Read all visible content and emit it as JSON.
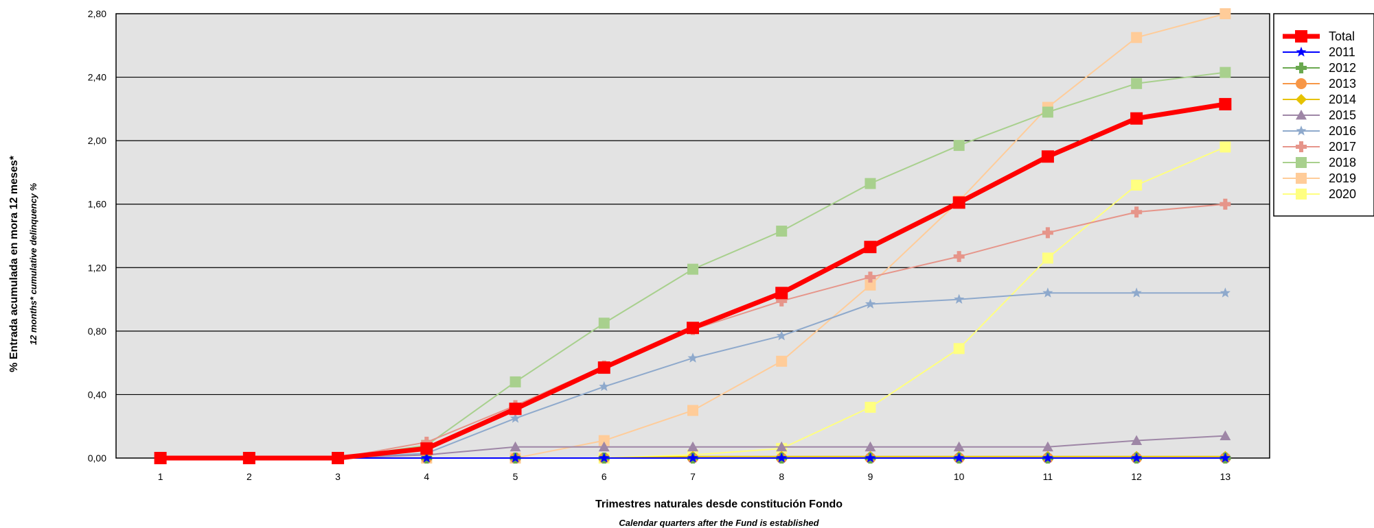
{
  "chart_data": {
    "type": "line",
    "x": [
      1,
      2,
      3,
      4,
      5,
      6,
      7,
      8,
      9,
      10,
      11,
      12,
      13
    ],
    "ylim": [
      0,
      2.8
    ],
    "yticks": [
      0,
      0.4,
      0.8,
      1.2,
      1.6,
      2.0,
      2.4,
      2.8
    ],
    "ytick_labels": [
      "0,00",
      "0,40",
      "0,80",
      "1,20",
      "1,60",
      "2,00",
      "2,40",
      "2,80"
    ],
    "xlabel": "Trimestres naturales desde constitución Fondo",
    "xlabel_sub": "Calendar quarters after the Fund is established",
    "ylabel": "% Entrada acumulada en mora 12 meses*",
    "ylabel_sub": "12 months* cumulative delinquency %",
    "grid": "horizontal",
    "legend_position": "right",
    "series": [
      {
        "name": "2020",
        "color": "#ffff80",
        "marker": "square",
        "width": 2,
        "values": [
          0,
          0,
          0,
          0,
          0,
          0,
          0.02,
          0.06,
          0.32,
          0.69,
          1.26,
          1.72,
          1.96
        ]
      },
      {
        "name": "2019",
        "color": "#ffcc99",
        "marker": "square",
        "width": 2,
        "values": [
          0,
          0,
          0,
          0,
          0,
          0.11,
          0.3,
          0.61,
          1.09,
          1.62,
          2.21,
          2.65,
          2.8
        ]
      },
      {
        "name": "2018",
        "color": "#a8d08d",
        "marker": "square",
        "width": 2,
        "values": [
          0,
          0,
          0,
          0.08,
          0.48,
          0.85,
          1.19,
          1.43,
          1.73,
          1.97,
          2.18,
          2.36,
          2.43
        ]
      },
      {
        "name": "2017",
        "color": "#e6958a",
        "marker": "plus",
        "width": 2,
        "values": [
          0,
          0,
          0,
          0.1,
          0.33,
          0.58,
          0.81,
          0.99,
          1.14,
          1.27,
          1.42,
          1.55,
          1.6
        ]
      },
      {
        "name": "2016",
        "color": "#8ea9cc",
        "marker": "star",
        "width": 2,
        "values": [
          0,
          0,
          0,
          0.03,
          0.25,
          0.45,
          0.63,
          0.77,
          0.97,
          1.0,
          1.04,
          1.04,
          1.04
        ]
      },
      {
        "name": "2015",
        "color": "#9e86a6",
        "marker": "triangle",
        "width": 2,
        "values": [
          0,
          0,
          0,
          0.02,
          0.07,
          0.07,
          0.07,
          0.07,
          0.07,
          0.07,
          0.07,
          0.11,
          0.14
        ]
      },
      {
        "name": "2014",
        "color": "#e6c200",
        "marker": "diamond",
        "width": 2,
        "values": [
          0,
          0,
          0,
          0,
          0,
          0,
          0.01,
          0.01,
          0.01,
          0.01,
          0.01,
          0.01,
          0.01
        ]
      },
      {
        "name": "2013",
        "color": "#f79646",
        "marker": "circle",
        "width": 2,
        "values": [
          0,
          0,
          0,
          0,
          0,
          0,
          0,
          0,
          0,
          0,
          0,
          0,
          0
        ]
      },
      {
        "name": "2012",
        "color": "#6aa84f",
        "marker": "plus",
        "width": 2,
        "values": [
          0,
          0,
          0,
          0,
          0,
          0,
          0,
          0,
          0,
          0,
          0,
          0,
          0
        ]
      },
      {
        "name": "2011",
        "color": "#0000ff",
        "marker": "star",
        "width": 2,
        "values": [
          0,
          0,
          0,
          0,
          0,
          0,
          0,
          0,
          0,
          0,
          0,
          0,
          0
        ]
      },
      {
        "name": "Total",
        "color": "#ff0000",
        "marker": "square",
        "width": 7,
        "values": [
          0,
          0,
          0,
          0.06,
          0.31,
          0.57,
          0.82,
          1.04,
          1.33,
          1.61,
          1.9,
          2.14,
          2.23
        ]
      }
    ],
    "legend_order": [
      "Total",
      "2011",
      "2012",
      "2013",
      "2014",
      "2015",
      "2016",
      "2017",
      "2018",
      "2019",
      "2020"
    ]
  }
}
